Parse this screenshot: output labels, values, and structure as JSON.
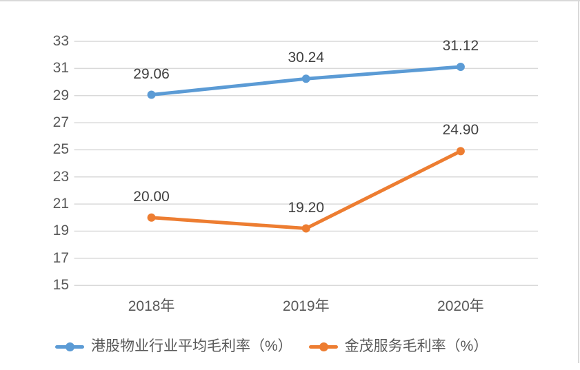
{
  "chart_data": {
    "type": "line",
    "title": "",
    "categories": [
      "2018年",
      "2019年",
      "2020年"
    ],
    "series": [
      {
        "name": "港股物业行业平均毛利率（%）",
        "values": [
          29.06,
          30.24,
          31.12
        ],
        "labels": [
          "29.06",
          "30.24",
          "31.12"
        ],
        "color": "#5B9BD5"
      },
      {
        "name": "金茂服务毛利率（%）",
        "values": [
          20.0,
          19.2,
          24.9
        ],
        "labels": [
          "20.00",
          "19.20",
          "24.90"
        ],
        "color": "#ED7D31"
      }
    ],
    "y_axis": {
      "min": 15,
      "max": 33,
      "tick_step": 2,
      "tick_labels": [
        "33",
        "31",
        "29",
        "27",
        "25",
        "23",
        "21",
        "19",
        "17",
        "15"
      ]
    },
    "xlabel": "",
    "ylabel": "",
    "grid": true,
    "legend_position": "bottom",
    "colors": {
      "gridline": "#D9D9D9",
      "chart_border": "#D9D9D9",
      "axis_label": "#595959",
      "data_label": "#404040",
      "background": "#FFFFFF"
    }
  }
}
